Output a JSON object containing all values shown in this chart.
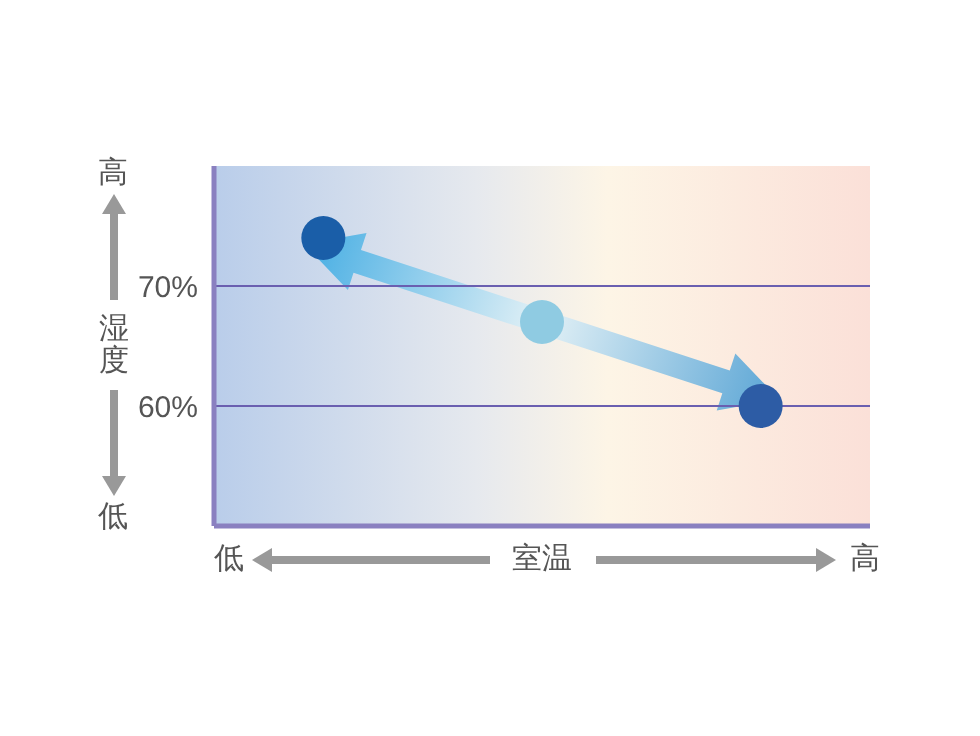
{
  "chart_data": {
    "type": "scatter",
    "xlabel": "室温",
    "ylabel": "湿度",
    "categories": [
      null,
      null,
      null
    ],
    "values": [
      74,
      67,
      60
    ],
    "colors": [
      "#1a5ea8",
      "#8fcbe2",
      "#2d5ca5"
    ],
    "ylim": [
      50,
      80
    ],
    "yticks": [
      {
        "value": 60,
        "label": "60%"
      },
      {
        "value": 70,
        "label": "70%"
      }
    ],
    "grid": "y",
    "marker": "circle",
    "annotations": [
      "高",
      "低",
      "低",
      "高"
    ]
  }
}
